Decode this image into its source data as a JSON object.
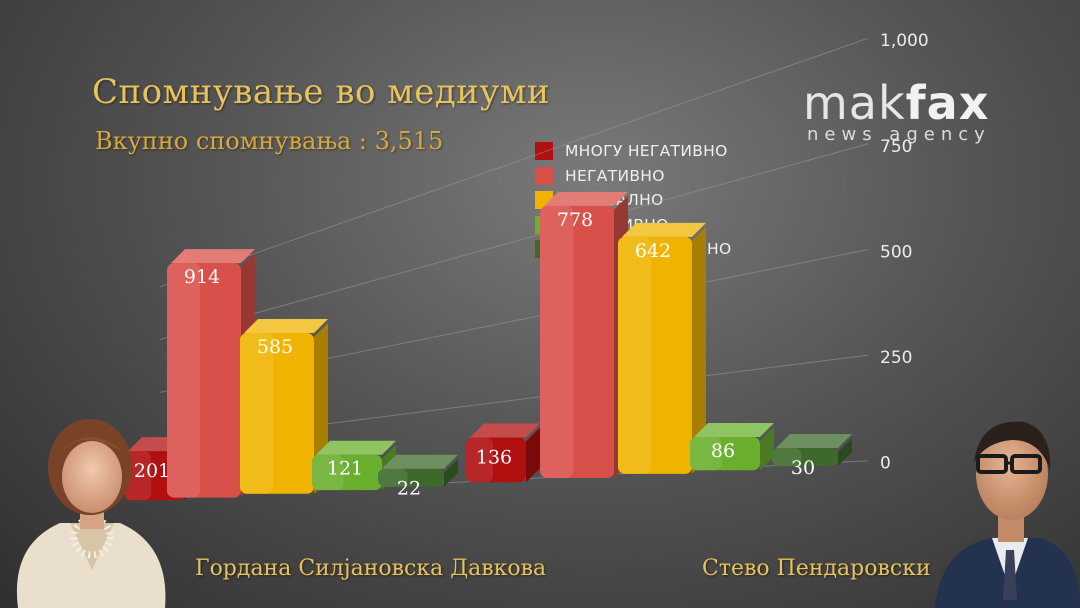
{
  "title": "Спомнување во медиуми",
  "subtitle": "Вкупно спомнувања : 3,515",
  "logo": {
    "main_light": "mak",
    "main_bold": "fax",
    "sub": "news agency"
  },
  "legend": [
    {
      "label": "МНОГУ НЕГАТИВНО",
      "color": "#b01010"
    },
    {
      "label": "НЕГАТИВНО",
      "color": "#d9504a"
    },
    {
      "label": "НЕУТРАЛНО",
      "color": "#f0b400"
    },
    {
      "label": "ПОЗИТИВНО",
      "color": "#6ab02e"
    },
    {
      "label": "МНОГУ ПОЗИТИВНО",
      "color": "#3d6a2a"
    }
  ],
  "chart_data": {
    "type": "bar",
    "title": "Спомнување во медиуми",
    "subtitle": "Вкупно спомнувања : 3,515",
    "categories": [
      "Гордана Силјановска Давкова",
      "Стево Пендаровски"
    ],
    "series": [
      {
        "name": "МНОГУ НЕГАТИВНО",
        "color": "#b01010",
        "values": [
          201,
          136
        ]
      },
      {
        "name": "НЕГАТИВНО",
        "color": "#d9504a",
        "values": [
          914,
          778
        ]
      },
      {
        "name": "НЕУТРАЛНО",
        "color": "#f0b400",
        "values": [
          585,
          642
        ]
      },
      {
        "name": "ПОЗИТИВНО",
        "color": "#6ab02e",
        "values": [
          121,
          86
        ]
      },
      {
        "name": "МНОГУ ПОЗИТИВНО",
        "color": "#3d6a2a",
        "values": [
          22,
          30
        ]
      }
    ],
    "yticks": [
      "0",
      "250",
      "500",
      "750",
      "1,000"
    ],
    "ylim": [
      0,
      1000
    ],
    "grid": true,
    "legend_position": "top-right"
  },
  "people": [
    {
      "name": "Гордана Силјановска Давкова"
    },
    {
      "name": "Стево Пендаровски"
    }
  ]
}
